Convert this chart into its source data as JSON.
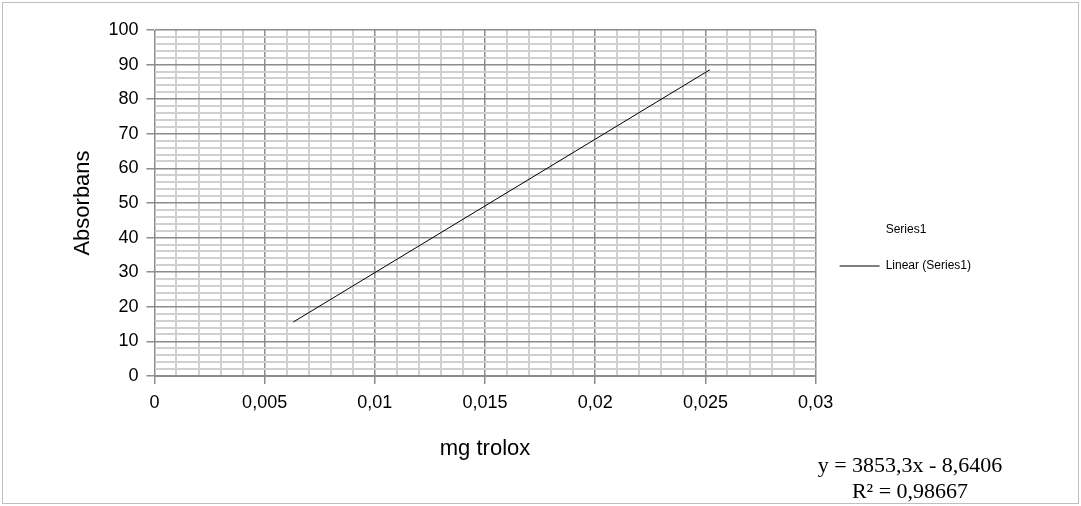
{
  "chart_data": {
    "type": "scatter",
    "xlabel": "mg trolox",
    "ylabel": "Absorbans",
    "xlim": [
      0,
      0.03
    ],
    "ylim": [
      0,
      100
    ],
    "xticks": [
      {
        "value": 0,
        "label": "0"
      },
      {
        "value": 0.001,
        "label": null
      },
      {
        "value": 0.002,
        "label": null
      },
      {
        "value": 0.003,
        "label": null
      },
      {
        "value": 0.004,
        "label": null
      },
      {
        "value": 0.005,
        "label": "0,005"
      },
      {
        "value": 0.006,
        "label": null
      },
      {
        "value": 0.007,
        "label": null
      },
      {
        "value": 0.008,
        "label": null
      },
      {
        "value": 0.009,
        "label": null
      },
      {
        "value": 0.01,
        "label": "0,01"
      },
      {
        "value": 0.011,
        "label": null
      },
      {
        "value": 0.012,
        "label": null
      },
      {
        "value": 0.013,
        "label": null
      },
      {
        "value": 0.014,
        "label": null
      },
      {
        "value": 0.015,
        "label": "0,015"
      },
      {
        "value": 0.016,
        "label": null
      },
      {
        "value": 0.017,
        "label": null
      },
      {
        "value": 0.018,
        "label": null
      },
      {
        "value": 0.019,
        "label": null
      },
      {
        "value": 0.02,
        "label": "0,02"
      },
      {
        "value": 0.021,
        "label": null
      },
      {
        "value": 0.022,
        "label": null
      },
      {
        "value": 0.023,
        "label": null
      },
      {
        "value": 0.024,
        "label": null
      },
      {
        "value": 0.025,
        "label": "0,025"
      },
      {
        "value": 0.026,
        "label": null
      },
      {
        "value": 0.027,
        "label": null
      },
      {
        "value": 0.028,
        "label": null
      },
      {
        "value": 0.029,
        "label": null
      },
      {
        "value": 0.03,
        "label": "0,03"
      }
    ],
    "yticks": [
      0,
      {
        "value": 2,
        "label": null
      },
      {
        "value": 4,
        "label": null
      },
      {
        "value": 6,
        "label": null
      },
      {
        "value": 8,
        "label": null
      },
      10,
      {
        "value": 12,
        "label": null
      },
      {
        "value": 14,
        "label": null
      },
      {
        "value": 16,
        "label": null
      },
      {
        "value": 18,
        "label": null
      },
      20,
      {
        "value": 22,
        "label": null
      },
      {
        "value": 24,
        "label": null
      },
      {
        "value": 26,
        "label": null
      },
      {
        "value": 28,
        "label": null
      },
      30,
      {
        "value": 32,
        "label": null
      },
      {
        "value": 34,
        "label": null
      },
      {
        "value": 36,
        "label": null
      },
      {
        "value": 38,
        "label": null
      },
      40,
      {
        "value": 42,
        "label": null
      },
      {
        "value": 44,
        "label": null
      },
      {
        "value": 46,
        "label": null
      },
      {
        "value": 48,
        "label": null
      },
      50,
      {
        "value": 52,
        "label": null
      },
      {
        "value": 54,
        "label": null
      },
      {
        "value": 56,
        "label": null
      },
      {
        "value": 58,
        "label": null
      },
      60,
      {
        "value": 62,
        "label": null
      },
      {
        "value": 64,
        "label": null
      },
      {
        "value": 66,
        "label": null
      },
      {
        "value": 68,
        "label": null
      },
      70,
      {
        "value": 72,
        "label": null
      },
      {
        "value": 74,
        "label": null
      },
      {
        "value": 76,
        "label": null
      },
      {
        "value": 78,
        "label": null
      },
      80,
      {
        "value": 82,
        "label": null
      },
      {
        "value": 84,
        "label": null
      },
      {
        "value": 86,
        "label": null
      },
      {
        "value": 88,
        "label": null
      },
      90,
      {
        "value": 92,
        "label": null
      },
      {
        "value": 94,
        "label": null
      },
      {
        "value": 96,
        "label": null
      },
      {
        "value": 98,
        "label": null
      },
      100
    ],
    "grid": true,
    "legend": "right",
    "series": [
      {
        "name": "Series1",
        "marker": "none"
      },
      {
        "name": "Linear (Series1)",
        "type": "line",
        "color": "#000000",
        "line_style": "solid",
        "marker": "none",
        "x": [
          0.0063,
          0.0252
        ],
        "values": [
          15.6,
          88.5
        ]
      }
    ],
    "annotations": [
      "y = 3853,3x - 8,6406",
      "R² = 0,98667"
    ]
  }
}
